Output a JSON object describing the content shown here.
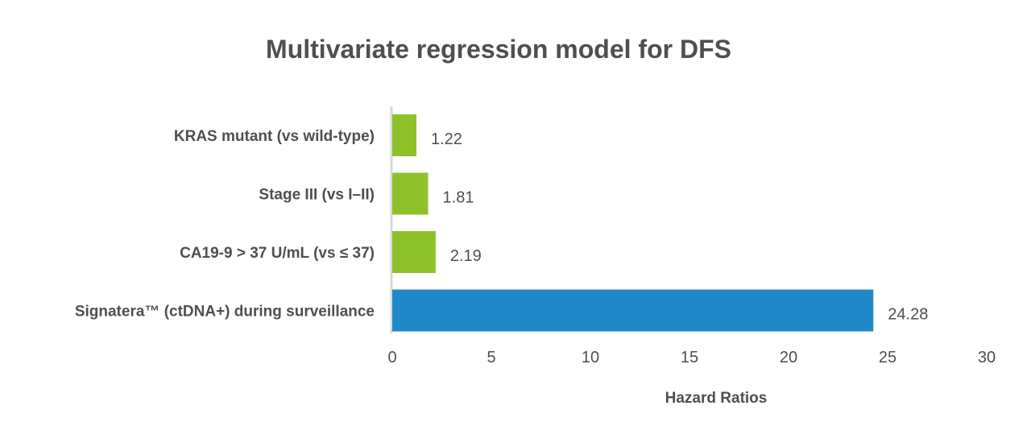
{
  "chart_data": {
    "type": "bar",
    "orientation": "horizontal",
    "title": "Multivariate regression model for DFS",
    "xlabel": "Hazard Ratios",
    "ylabel": "",
    "categories": [
      "KRAS mutant (vs wild-type)",
      "Stage III (vs I–II)",
      "CA19-9 > 37 U/mL (vs ≤ 37)",
      "Signatera™ (ctDNA+) during surveillance"
    ],
    "values": [
      1.22,
      1.81,
      2.19,
      24.28
    ],
    "value_labels": [
      "1.22",
      "1.81",
      "2.19",
      "24.28"
    ],
    "xlim": [
      0,
      30
    ],
    "xticks": [
      "0",
      "5",
      "10",
      "15",
      "20",
      "25",
      "30"
    ],
    "grid": false,
    "legend": "none",
    "colors": {
      "default_bar": "#8dc22b",
      "highlight_bar": "#1f88c9",
      "axis_line": "#d8d8d8",
      "text": "#4d4f53"
    },
    "bar_colors": [
      "#8dc22b",
      "#8dc22b",
      "#8dc22b",
      "#1f88c9"
    ]
  }
}
